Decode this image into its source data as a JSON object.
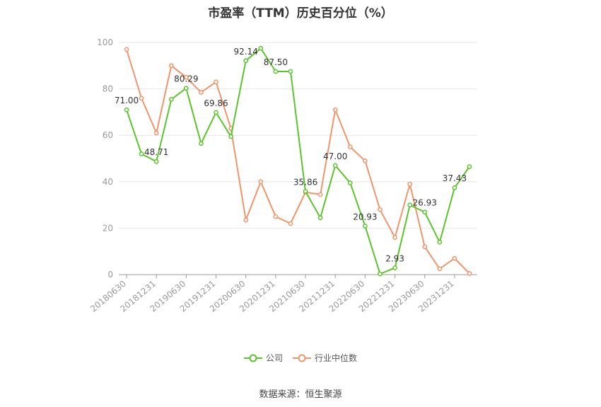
{
  "chart_data": {
    "type": "line",
    "title": "市盈率（TTM）历史百分位（%）",
    "source": "数据来源：恒生聚源",
    "ylim": [
      0,
      100
    ],
    "yticks": [
      0,
      20,
      40,
      60,
      80,
      100
    ],
    "x": [
      "20180630",
      "20180930",
      "20181231",
      "20190331",
      "20190630",
      "20190930",
      "20191231",
      "20200331",
      "20200630",
      "20200930",
      "20201231",
      "20210331",
      "20210630",
      "20210930",
      "20211231",
      "20220331",
      "20220630",
      "20220930",
      "20221231",
      "20230331",
      "20230630",
      "20230930",
      "20231231",
      "20240331"
    ],
    "x_tick_labels": [
      "20180630",
      "20181231",
      "20190630",
      "20191231",
      "20200630",
      "20201231",
      "20210630",
      "20211231",
      "20220630",
      "20221231",
      "20230630",
      "20231231"
    ],
    "series": [
      {
        "name": "公司",
        "color": "#5ac52b",
        "values": [
          71.0,
          52.0,
          48.71,
          75.5,
          80.29,
          56.5,
          69.86,
          59.5,
          92.14,
          97.5,
          87.5,
          87.5,
          35.86,
          24.5,
          47.0,
          39.5,
          20.93,
          0.3,
          2.93,
          30.0,
          26.93,
          14.0,
          37.43,
          46.5
        ],
        "labels": [
          "71.00",
          null,
          "48.71",
          null,
          "80.29",
          null,
          "69.86",
          null,
          "92.14",
          null,
          "87.50",
          null,
          "35.86",
          null,
          "47.00",
          null,
          "20.93",
          null,
          "2.93",
          null,
          "26.93",
          null,
          "37.43",
          null
        ]
      },
      {
        "name": "行业中位数",
        "color": "#f0956a",
        "values": [
          97.0,
          76.0,
          61.0,
          90.0,
          85.0,
          78.5,
          83.0,
          63.0,
          23.5,
          40.0,
          25.0,
          22.0,
          35.5,
          34.5,
          71.0,
          55.0,
          49.0,
          28.0,
          16.0,
          39.0,
          12.0,
          2.5,
          7.0,
          0.5
        ]
      }
    ],
    "legend_position": "bottom-center",
    "grid": true
  }
}
